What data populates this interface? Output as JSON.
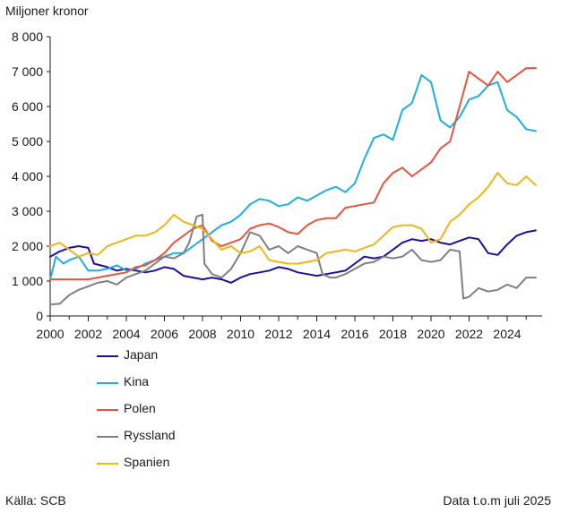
{
  "chart_data": {
    "type": "line",
    "title": "",
    "ylabel": "Miljoner kronor",
    "xlabel": "",
    "ylim": [
      0,
      8000
    ],
    "xlim": [
      2000,
      2025.6
    ],
    "yticks": [
      0,
      1000,
      2000,
      3000,
      4000,
      5000,
      6000,
      7000,
      8000
    ],
    "ytick_labels": [
      "0",
      "1 000",
      "2 000",
      "3 000",
      "4 000",
      "5 000",
      "6 000",
      "7 000",
      "8 000"
    ],
    "xticks": [
      2000,
      2002,
      2004,
      2006,
      2008,
      2010,
      2012,
      2014,
      2016,
      2018,
      2020,
      2022,
      2024
    ],
    "xtick_labels": [
      "2000",
      "2002",
      "2004",
      "2006",
      "2008",
      "2010",
      "2012",
      "2014",
      "2016",
      "2018",
      "2020",
      "2022",
      "2024"
    ],
    "grid": false,
    "legend_position": "bottom-left",
    "series": [
      {
        "name": "Japan",
        "color": "#1e0f9c",
        "points": [
          [
            2000,
            1700
          ],
          [
            2000.5,
            1850
          ],
          [
            2001,
            1950
          ],
          [
            2001.5,
            2000
          ],
          [
            2002,
            1950
          ],
          [
            2002.3,
            1500
          ],
          [
            2003,
            1400
          ],
          [
            2003.5,
            1300
          ],
          [
            2004,
            1350
          ],
          [
            2004.5,
            1300
          ],
          [
            2005,
            1250
          ],
          [
            2005.5,
            1300
          ],
          [
            2006,
            1400
          ],
          [
            2006.5,
            1350
          ],
          [
            2007,
            1150
          ],
          [
            2007.5,
            1100
          ],
          [
            2008,
            1050
          ],
          [
            2008.5,
            1100
          ],
          [
            2009,
            1050
          ],
          [
            2009.5,
            950
          ],
          [
            2010,
            1100
          ],
          [
            2010.5,
            1200
          ],
          [
            2011,
            1250
          ],
          [
            2011.5,
            1300
          ],
          [
            2012,
            1400
          ],
          [
            2012.5,
            1350
          ],
          [
            2013,
            1250
          ],
          [
            2013.5,
            1200
          ],
          [
            2014,
            1150
          ],
          [
            2014.5,
            1200
          ],
          [
            2015,
            1250
          ],
          [
            2015.5,
            1300
          ],
          [
            2016,
            1500
          ],
          [
            2016.5,
            1700
          ],
          [
            2017,
            1650
          ],
          [
            2017.5,
            1700
          ],
          [
            2018,
            1900
          ],
          [
            2018.5,
            2100
          ],
          [
            2019,
            2200
          ],
          [
            2019.5,
            2150
          ],
          [
            2020,
            2200
          ],
          [
            2020.5,
            2100
          ],
          [
            2021,
            2050
          ],
          [
            2021.5,
            2150
          ],
          [
            2022,
            2250
          ],
          [
            2022.5,
            2200
          ],
          [
            2023,
            1800
          ],
          [
            2023.5,
            1750
          ],
          [
            2024,
            2050
          ],
          [
            2024.5,
            2300
          ],
          [
            2025,
            2400
          ],
          [
            2025.5,
            2450
          ]
        ]
      },
      {
        "name": "Kina",
        "color": "#1eaee6",
        "points": [
          [
            2000,
            1050
          ],
          [
            2000.3,
            1700
          ],
          [
            2000.7,
            1500
          ],
          [
            2001,
            1600
          ],
          [
            2001.5,
            1700
          ],
          [
            2002,
            1300
          ],
          [
            2002.5,
            1300
          ],
          [
            2003,
            1350
          ],
          [
            2003.5,
            1450
          ],
          [
            2004,
            1300
          ],
          [
            2004.5,
            1350
          ],
          [
            2005,
            1500
          ],
          [
            2005.5,
            1600
          ],
          [
            2006,
            1700
          ],
          [
            2006.5,
            1800
          ],
          [
            2007,
            1800
          ],
          [
            2007.5,
            2000
          ],
          [
            2008,
            2200
          ],
          [
            2008.5,
            2400
          ],
          [
            2009,
            2600
          ],
          [
            2009.5,
            2700
          ],
          [
            2010,
            2900
          ],
          [
            2010.5,
            3200
          ],
          [
            2011,
            3350
          ],
          [
            2011.5,
            3300
          ],
          [
            2012,
            3150
          ],
          [
            2012.5,
            3200
          ],
          [
            2013,
            3400
          ],
          [
            2013.5,
            3300
          ],
          [
            2014,
            3450
          ],
          [
            2014.5,
            3600
          ],
          [
            2015,
            3700
          ],
          [
            2015.5,
            3550
          ],
          [
            2016,
            3800
          ],
          [
            2016.5,
            4500
          ],
          [
            2017,
            5100
          ],
          [
            2017.5,
            5200
          ],
          [
            2018,
            5050
          ],
          [
            2018.5,
            5900
          ],
          [
            2019,
            6100
          ],
          [
            2019.5,
            6900
          ],
          [
            2020,
            6700
          ],
          [
            2020.5,
            5600
          ],
          [
            2021,
            5400
          ],
          [
            2021.5,
            5700
          ],
          [
            2022,
            6200
          ],
          [
            2022.5,
            6300
          ],
          [
            2023,
            6600
          ],
          [
            2023.5,
            6700
          ],
          [
            2024,
            5900
          ],
          [
            2024.5,
            5700
          ],
          [
            2025,
            5350
          ],
          [
            2025.5,
            5300
          ]
        ]
      },
      {
        "name": "Polen",
        "color": "#e6553f",
        "points": [
          [
            2000,
            1050
          ],
          [
            2000.5,
            1050
          ],
          [
            2001,
            1050
          ],
          [
            2001.5,
            1050
          ],
          [
            2002,
            1050
          ],
          [
            2002.5,
            1100
          ],
          [
            2003,
            1150
          ],
          [
            2003.5,
            1200
          ],
          [
            2004,
            1250
          ],
          [
            2004.5,
            1400
          ],
          [
            2005,
            1450
          ],
          [
            2005.5,
            1600
          ],
          [
            2006,
            1800
          ],
          [
            2006.5,
            2100
          ],
          [
            2007,
            2300
          ],
          [
            2007.5,
            2500
          ],
          [
            2008,
            2600
          ],
          [
            2008.5,
            2150
          ],
          [
            2009,
            2000
          ],
          [
            2009.5,
            2100
          ],
          [
            2010,
            2200
          ],
          [
            2010.5,
            2500
          ],
          [
            2011,
            2600
          ],
          [
            2011.5,
            2650
          ],
          [
            2012,
            2550
          ],
          [
            2012.5,
            2400
          ],
          [
            2013,
            2350
          ],
          [
            2013.5,
            2600
          ],
          [
            2014,
            2750
          ],
          [
            2014.5,
            2800
          ],
          [
            2015,
            2800
          ],
          [
            2015.5,
            3100
          ],
          [
            2016,
            3150
          ],
          [
            2016.5,
            3200
          ],
          [
            2017,
            3250
          ],
          [
            2017.5,
            3800
          ],
          [
            2018,
            4100
          ],
          [
            2018.5,
            4250
          ],
          [
            2019,
            4000
          ],
          [
            2019.5,
            4200
          ],
          [
            2020,
            4400
          ],
          [
            2020.5,
            4800
          ],
          [
            2021,
            5000
          ],
          [
            2021.5,
            6000
          ],
          [
            2022,
            7000
          ],
          [
            2022.5,
            6800
          ],
          [
            2023,
            6600
          ],
          [
            2023.5,
            7000
          ],
          [
            2024,
            6700
          ],
          [
            2024.5,
            6900
          ],
          [
            2025,
            7100
          ],
          [
            2025.5,
            7100
          ]
        ]
      },
      {
        "name": "Ryssland",
        "color": "#808080",
        "points": [
          [
            2000,
            330
          ],
          [
            2000.5,
            350
          ],
          [
            2001,
            600
          ],
          [
            2001.5,
            750
          ],
          [
            2002,
            850
          ],
          [
            2002.5,
            950
          ],
          [
            2003,
            1000
          ],
          [
            2003.5,
            900
          ],
          [
            2004,
            1100
          ],
          [
            2004.5,
            1200
          ],
          [
            2005,
            1300
          ],
          [
            2005.5,
            1500
          ],
          [
            2006,
            1700
          ],
          [
            2006.5,
            1650
          ],
          [
            2007,
            1800
          ],
          [
            2007.3,
            2100
          ],
          [
            2007.7,
            2850
          ],
          [
            2008,
            2900
          ],
          [
            2008.1,
            1500
          ],
          [
            2008.5,
            1200
          ],
          [
            2009,
            1100
          ],
          [
            2009.5,
            1350
          ],
          [
            2010,
            1800
          ],
          [
            2010.5,
            2400
          ],
          [
            2011,
            2300
          ],
          [
            2011.5,
            1900
          ],
          [
            2012,
            2000
          ],
          [
            2012.5,
            1800
          ],
          [
            2013,
            2000
          ],
          [
            2013.5,
            1900
          ],
          [
            2014,
            1800
          ],
          [
            2014.3,
            1200
          ],
          [
            2014.7,
            1100
          ],
          [
            2015,
            1100
          ],
          [
            2015.5,
            1200
          ],
          [
            2016,
            1350
          ],
          [
            2016.5,
            1500
          ],
          [
            2017,
            1550
          ],
          [
            2017.5,
            1700
          ],
          [
            2018,
            1650
          ],
          [
            2018.5,
            1700
          ],
          [
            2019,
            1900
          ],
          [
            2019.5,
            1600
          ],
          [
            2020,
            1550
          ],
          [
            2020.5,
            1600
          ],
          [
            2021,
            1900
          ],
          [
            2021.5,
            1850
          ],
          [
            2021.7,
            500
          ],
          [
            2022,
            550
          ],
          [
            2022.5,
            800
          ],
          [
            2023,
            700
          ],
          [
            2023.5,
            750
          ],
          [
            2024,
            900
          ],
          [
            2024.5,
            800
          ],
          [
            2025,
            1100
          ],
          [
            2025.5,
            1100
          ]
        ]
      },
      {
        "name": "Spanien",
        "color": "#f0b618",
        "points": [
          [
            2000,
            2000
          ],
          [
            2000.5,
            2100
          ],
          [
            2001,
            1900
          ],
          [
            2001.5,
            1700
          ],
          [
            2002,
            1800
          ],
          [
            2002.5,
            1750
          ],
          [
            2003,
            2000
          ],
          [
            2003.5,
            2100
          ],
          [
            2004,
            2200
          ],
          [
            2004.5,
            2300
          ],
          [
            2005,
            2300
          ],
          [
            2005.5,
            2400
          ],
          [
            2006,
            2600
          ],
          [
            2006.5,
            2900
          ],
          [
            2007,
            2700
          ],
          [
            2007.5,
            2600
          ],
          [
            2008,
            2500
          ],
          [
            2008.5,
            2200
          ],
          [
            2009,
            1900
          ],
          [
            2009.5,
            2000
          ],
          [
            2010,
            1800
          ],
          [
            2010.5,
            1850
          ],
          [
            2011,
            2000
          ],
          [
            2011.5,
            1600
          ],
          [
            2012,
            1550
          ],
          [
            2012.5,
            1500
          ],
          [
            2013,
            1500
          ],
          [
            2013.5,
            1550
          ],
          [
            2014,
            1600
          ],
          [
            2014.5,
            1800
          ],
          [
            2015,
            1850
          ],
          [
            2015.5,
            1900
          ],
          [
            2016,
            1850
          ],
          [
            2016.5,
            1950
          ],
          [
            2017,
            2050
          ],
          [
            2017.5,
            2300
          ],
          [
            2018,
            2550
          ],
          [
            2018.5,
            2600
          ],
          [
            2019,
            2600
          ],
          [
            2019.5,
            2500
          ],
          [
            2020,
            2100
          ],
          [
            2020.5,
            2200
          ],
          [
            2021,
            2700
          ],
          [
            2021.5,
            2900
          ],
          [
            2022,
            3200
          ],
          [
            2022.5,
            3400
          ],
          [
            2023,
            3700
          ],
          [
            2023.5,
            4100
          ],
          [
            2024,
            3800
          ],
          [
            2024.5,
            3750
          ],
          [
            2025,
            4000
          ],
          [
            2025.5,
            3750
          ]
        ]
      }
    ]
  },
  "footer": {
    "source": "Källa: SCB",
    "note": "Data t.o.m juli 2025"
  }
}
